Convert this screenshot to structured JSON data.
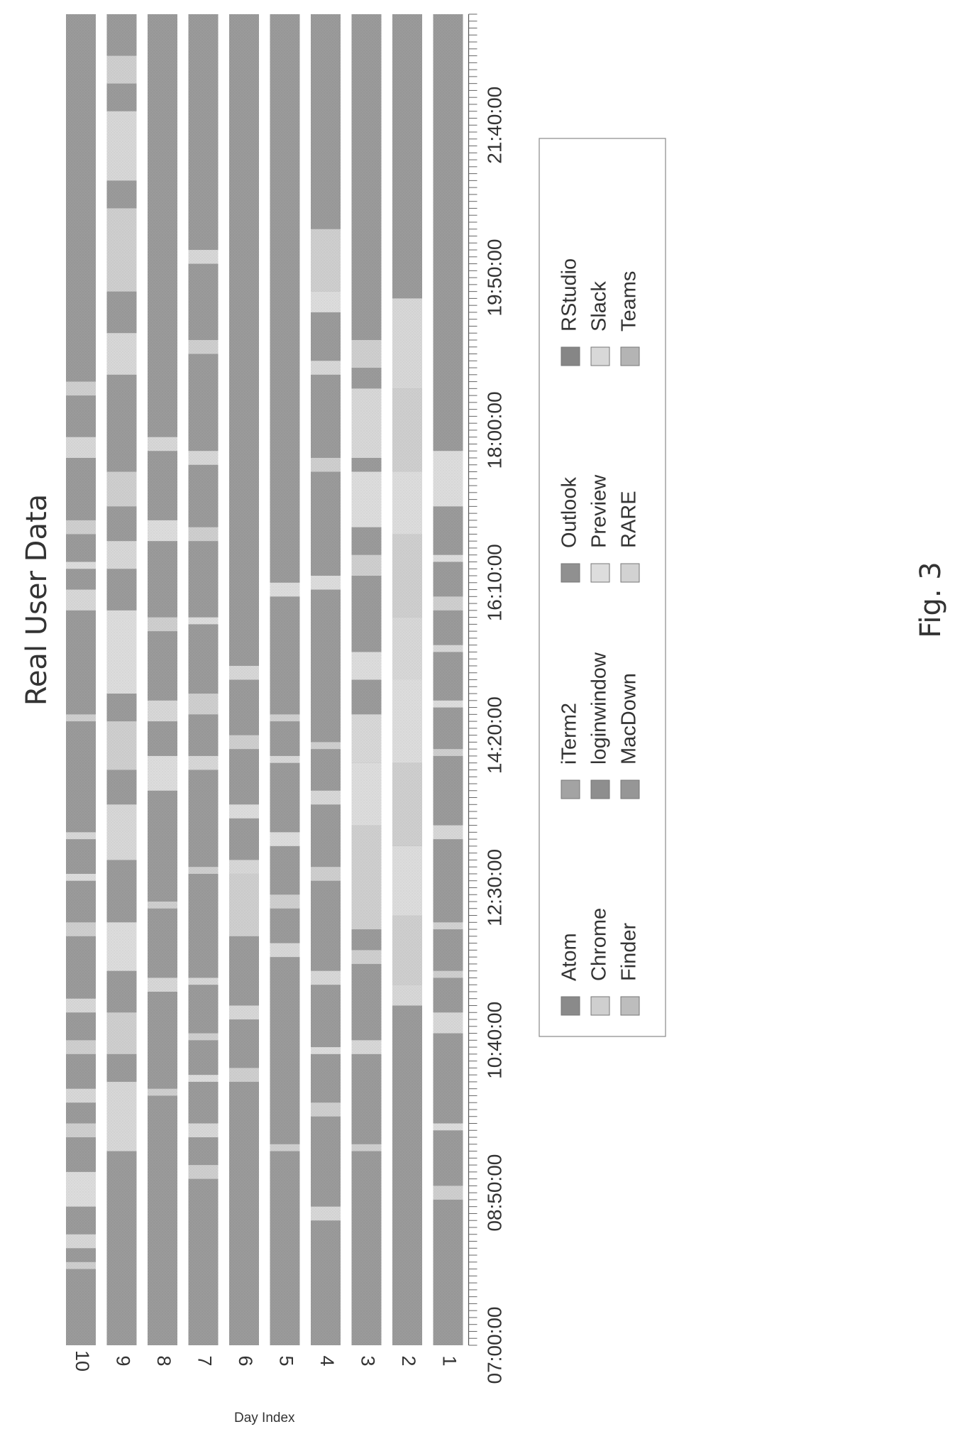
{
  "chart_data": {
    "type": "timeline",
    "title": "Real User Data",
    "figure_label": "Fig. 3",
    "ylabel": "Day Index",
    "xlabel": "",
    "x_tick_labels": [
      "07:00:00",
      "08:50:00",
      "10:40:00",
      "12:30:00",
      "14:20:00",
      "16:10:00",
      "18:00:00",
      "19:50:00",
      "21:40:00"
    ],
    "xlim": [
      "07:00:00",
      "23:00:00"
    ],
    "days": [
      "1",
      "2",
      "3",
      "4",
      "5",
      "6",
      "7",
      "8",
      "9",
      "10"
    ],
    "legend": {
      "placement": "lower-right",
      "entries": [
        {
          "name": "Atom",
          "color": "#8a8a8a"
        },
        {
          "name": "Chrome",
          "color": "#cfcfcf"
        },
        {
          "name": "Finder",
          "color": "#bdbdbd"
        },
        {
          "name": "iTerm2",
          "color": "#a3a3a3"
        },
        {
          "name": "loginwindow",
          "color": "#8e8e8e"
        },
        {
          "name": "MacDown",
          "color": "#969696"
        },
        {
          "name": "Outlook",
          "color": "#909090"
        },
        {
          "name": "Preview",
          "color": "#dddddd"
        },
        {
          "name": "RARE",
          "color": "#d2d2d2"
        },
        {
          "name": "RStudio",
          "color": "#868686"
        },
        {
          "name": "Slack",
          "color": "#d8d8d8"
        },
        {
          "name": "Teams",
          "color": "#b4b4b4"
        }
      ]
    },
    "base_color": "#9b9b9b",
    "segments": {
      "1": [
        [
          "08:45",
          "08:55",
          "Chrome"
        ],
        [
          "09:35",
          "09:40",
          "Preview"
        ],
        [
          "10:45",
          "11:00",
          "Slack"
        ],
        [
          "11:25",
          "11:30",
          "Chrome"
        ],
        [
          "12:00",
          "12:05",
          "RARE"
        ],
        [
          "13:05",
          "13:15",
          "Slack"
        ],
        [
          "14:05",
          "14:10",
          "Chrome"
        ],
        [
          "14:40",
          "14:45",
          "Preview"
        ],
        [
          "15:20",
          "15:25",
          "Slack"
        ],
        [
          "15:50",
          "16:00",
          "Chrome"
        ],
        [
          "16:25",
          "16:30",
          "Preview"
        ],
        [
          "17:05",
          "17:45",
          "Preview"
        ]
      ],
      "2": [
        [
          "11:05",
          "11:20",
          "Slack"
        ],
        [
          "11:20",
          "12:10",
          "Chrome"
        ],
        [
          "12:10",
          "13:00",
          "Preview"
        ],
        [
          "13:00",
          "14:00",
          "Chrome"
        ],
        [
          "14:00",
          "15:00",
          "Preview"
        ],
        [
          "15:00",
          "15:45",
          "Slack"
        ],
        [
          "15:45",
          "16:45",
          "Chrome"
        ],
        [
          "16:45",
          "17:30",
          "Preview"
        ],
        [
          "17:30",
          "18:30",
          "Chrome"
        ],
        [
          "18:30",
          "19:35",
          "Slack"
        ]
      ],
      "3": [
        [
          "09:20",
          "09:25",
          "Chrome"
        ],
        [
          "10:30",
          "10:40",
          "Slack"
        ],
        [
          "11:35",
          "11:45",
          "Chrome"
        ],
        [
          "12:00",
          "13:15",
          "Chrome"
        ],
        [
          "13:15",
          "14:00",
          "Preview"
        ],
        [
          "14:00",
          "14:35",
          "Slack"
        ],
        [
          "15:00",
          "15:20",
          "Preview"
        ],
        [
          "16:15",
          "16:30",
          "Chrome"
        ],
        [
          "16:50",
          "17:30",
          "Preview"
        ],
        [
          "17:40",
          "18:30",
          "Slack"
        ],
        [
          "18:45",
          "19:05",
          "Chrome"
        ]
      ],
      "4": [
        [
          "08:30",
          "08:40",
          "Slack"
        ],
        [
          "09:45",
          "09:55",
          "Chrome"
        ],
        [
          "10:30",
          "10:35",
          "Preview"
        ],
        [
          "11:20",
          "11:30",
          "Slack"
        ],
        [
          "12:35",
          "12:45",
          "Chrome"
        ],
        [
          "13:30",
          "13:40",
          "Slack"
        ],
        [
          "14:10",
          "14:15",
          "Chrome"
        ],
        [
          "16:05",
          "16:15",
          "Preview"
        ],
        [
          "17:30",
          "17:40",
          "Chrome"
        ],
        [
          "18:40",
          "18:50",
          "Slack"
        ],
        [
          "19:25",
          "19:40",
          "Preview"
        ],
        [
          "19:40",
          "20:25",
          "Chrome"
        ]
      ],
      "5": [
        [
          "09:20",
          "09:25",
          "Chrome"
        ],
        [
          "11:40",
          "11:50",
          "Slack"
        ],
        [
          "12:15",
          "12:25",
          "Chrome"
        ],
        [
          "13:00",
          "13:10",
          "Preview"
        ],
        [
          "14:00",
          "14:05",
          "Slack"
        ],
        [
          "14:30",
          "14:35",
          "Chrome"
        ],
        [
          "16:00",
          "16:10",
          "Preview"
        ]
      ],
      "6": [
        [
          "10:10",
          "10:20",
          "Chrome"
        ],
        [
          "10:55",
          "11:05",
          "Slack"
        ],
        [
          "11:55",
          "12:40",
          "Chrome"
        ],
        [
          "12:40",
          "12:50",
          "Slack"
        ],
        [
          "13:20",
          "13:30",
          "Preview"
        ],
        [
          "14:10",
          "14:20",
          "Chrome"
        ],
        [
          "15:00",
          "15:10",
          "Slack"
        ]
      ],
      "7": [
        [
          "09:00",
          "09:10",
          "Chrome"
        ],
        [
          "09:30",
          "09:40",
          "Slack"
        ],
        [
          "10:10",
          "10:15",
          "Preview"
        ],
        [
          "10:40",
          "10:45",
          "Chrome"
        ],
        [
          "11:20",
          "11:25",
          "Slack"
        ],
        [
          "12:40",
          "12:45",
          "Chrome"
        ],
        [
          "13:55",
          "14:05",
          "Slack"
        ],
        [
          "14:35",
          "14:50",
          "Chrome"
        ],
        [
          "15:40",
          "15:45",
          "Preview"
        ],
        [
          "16:40",
          "16:50",
          "Chrome"
        ],
        [
          "17:35",
          "17:45",
          "Slack"
        ],
        [
          "18:55",
          "19:05",
          "Chrome"
        ],
        [
          "20:00",
          "20:10",
          "Slack"
        ]
      ],
      "8": [
        [
          "10:00",
          "10:05",
          "Chrome"
        ],
        [
          "11:15",
          "11:25",
          "Slack"
        ],
        [
          "12:15",
          "12:20",
          "Chrome"
        ],
        [
          "13:40",
          "14:05",
          "Preview"
        ],
        [
          "14:30",
          "14:45",
          "Slack"
        ],
        [
          "15:35",
          "15:45",
          "Chrome"
        ],
        [
          "16:40",
          "16:55",
          "Preview"
        ],
        [
          "17:45",
          "17:55",
          "Slack"
        ]
      ],
      "9": [
        [
          "09:20",
          "10:10",
          "Slack"
        ],
        [
          "10:30",
          "11:00",
          "Chrome"
        ],
        [
          "11:30",
          "12:05",
          "Preview"
        ],
        [
          "12:50",
          "13:30",
          "Slack"
        ],
        [
          "13:55",
          "14:30",
          "Chrome"
        ],
        [
          "14:50",
          "15:50",
          "Preview"
        ],
        [
          "16:20",
          "16:40",
          "Slack"
        ],
        [
          "17:05",
          "17:30",
          "Chrome"
        ],
        [
          "18:40",
          "19:10",
          "Slack"
        ],
        [
          "19:40",
          "20:40",
          "Chrome"
        ],
        [
          "21:00",
          "21:50",
          "Slack"
        ],
        [
          "22:10",
          "22:30",
          "Chrome"
        ]
      ],
      "10": [
        [
          "07:55",
          "08:00",
          "Chrome"
        ],
        [
          "08:10",
          "08:20",
          "Slack"
        ],
        [
          "08:40",
          "09:05",
          "Preview"
        ],
        [
          "09:30",
          "09:40",
          "Chrome"
        ],
        [
          "09:55",
          "10:05",
          "Slack"
        ],
        [
          "10:30",
          "10:40",
          "Chrome"
        ],
        [
          "11:00",
          "11:10",
          "Slack"
        ],
        [
          "11:55",
          "12:05",
          "Chrome"
        ],
        [
          "12:35",
          "12:40",
          "Preview"
        ],
        [
          "13:05",
          "13:10",
          "Slack"
        ],
        [
          "14:30",
          "14:35",
          "Chrome"
        ],
        [
          "15:50",
          "16:05",
          "Slack"
        ],
        [
          "16:20",
          "16:25",
          "Preview"
        ],
        [
          "16:45",
          "16:55",
          "Chrome"
        ],
        [
          "17:40",
          "17:55",
          "Slack"
        ],
        [
          "18:25",
          "18:35",
          "Chrome"
        ]
      ]
    }
  }
}
